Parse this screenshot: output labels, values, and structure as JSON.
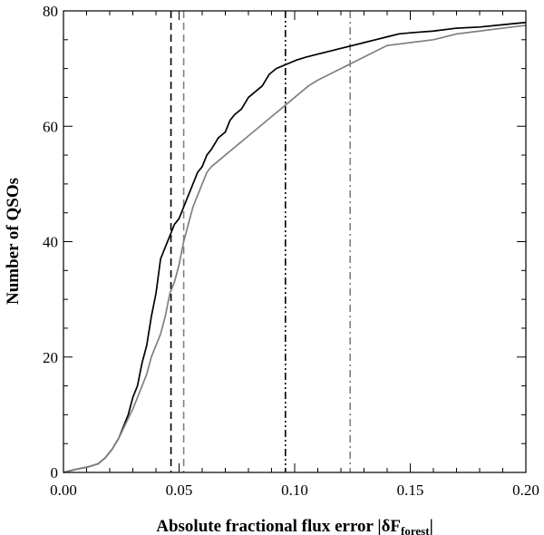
{
  "chart_data": {
    "type": "line",
    "title": "",
    "xlabel": "Absolute fractional flux error |δF",
    "xlabel_subscript": "forest",
    "xlabel_suffix": "|",
    "ylabel": "Number of QSOs",
    "xlim": [
      0.0,
      0.2
    ],
    "ylim": [
      0,
      80
    ],
    "x_ticks": [
      0.0,
      0.05,
      0.1,
      0.15,
      0.2
    ],
    "x_tick_labels": [
      "0.00",
      "0.05",
      "0.10",
      "0.15",
      "0.20"
    ],
    "y_ticks": [
      0,
      20,
      40,
      60,
      80
    ],
    "y_tick_labels": [
      "0",
      "20",
      "40",
      "60",
      "80"
    ],
    "grid": false,
    "series": [
      {
        "name": "black",
        "color": "#000000",
        "x": [
          0.0,
          0.005,
          0.011,
          0.015,
          0.018,
          0.021,
          0.024,
          0.026,
          0.028,
          0.03,
          0.032,
          0.034,
          0.036,
          0.038,
          0.04,
          0.042,
          0.044,
          0.046,
          0.048,
          0.05,
          0.052,
          0.054,
          0.056,
          0.058,
          0.06,
          0.062,
          0.064,
          0.067,
          0.07,
          0.072,
          0.074,
          0.077,
          0.08,
          0.083,
          0.086,
          0.089,
          0.092,
          0.095,
          0.098,
          0.101,
          0.105,
          0.11,
          0.115,
          0.12,
          0.125,
          0.13,
          0.135,
          0.14,
          0.145,
          0.15,
          0.16,
          0.17,
          0.18,
          0.19,
          0.2
        ],
        "y": [
          0,
          0.5,
          1,
          1.5,
          2.5,
          4,
          6,
          8,
          10,
          13,
          15,
          19,
          22,
          27,
          31,
          37,
          39,
          41,
          43,
          44,
          46,
          48,
          50,
          52,
          53,
          55,
          56,
          58,
          59,
          61,
          62,
          63,
          65,
          66,
          67,
          69,
          70,
          70.5,
          71,
          71.5,
          72,
          72.5,
          73,
          73.5,
          74,
          74.5,
          75,
          75.5,
          76,
          76.2,
          76.5,
          77,
          77.2,
          77.6,
          78
        ]
      },
      {
        "name": "gray",
        "color": "#808080",
        "x": [
          0.0,
          0.005,
          0.011,
          0.015,
          0.018,
          0.021,
          0.024,
          0.027,
          0.03,
          0.032,
          0.034,
          0.036,
          0.038,
          0.04,
          0.042,
          0.044,
          0.046,
          0.048,
          0.05,
          0.052,
          0.054,
          0.056,
          0.058,
          0.06,
          0.062,
          0.064,
          0.067,
          0.07,
          0.073,
          0.076,
          0.079,
          0.082,
          0.085,
          0.088,
          0.091,
          0.094,
          0.097,
          0.1,
          0.103,
          0.106,
          0.11,
          0.115,
          0.12,
          0.125,
          0.13,
          0.135,
          0.14,
          0.15,
          0.16,
          0.17,
          0.18,
          0.19,
          0.2
        ],
        "y": [
          0,
          0.5,
          1,
          1.5,
          2.5,
          4,
          6,
          8.5,
          11,
          13,
          15,
          17,
          20,
          22,
          24,
          27,
          31,
          33,
          36,
          40,
          43,
          46,
          48,
          50,
          52,
          53,
          54,
          55,
          56,
          57,
          58,
          59,
          60,
          61,
          62,
          63,
          64,
          65,
          66,
          67,
          68,
          69,
          70,
          71,
          72,
          73,
          74,
          74.5,
          75,
          76,
          76.5,
          77,
          77.5
        ]
      }
    ],
    "vlines": [
      {
        "name": "black-dashed",
        "x": 0.0465,
        "color": "#000000",
        "style": "dashed"
      },
      {
        "name": "gray-dashed",
        "x": 0.052,
        "color": "#808080",
        "style": "dashed"
      },
      {
        "name": "black-dashdot",
        "x": 0.096,
        "color": "#000000",
        "style": "dashdotdot"
      },
      {
        "name": "gray-dashdot",
        "x": 0.124,
        "color": "#808080",
        "style": "dashdot"
      }
    ]
  }
}
